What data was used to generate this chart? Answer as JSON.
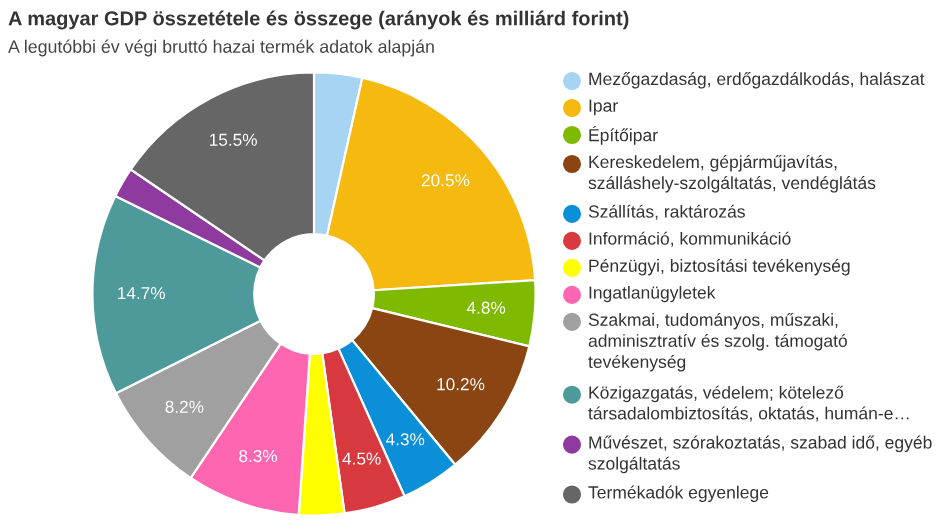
{
  "chart_data": {
    "type": "donut",
    "title": "A magyar GDP összetétele és összege (arányok és milliárd forint)",
    "subtitle": "A legutóbbi év végi bruttó hazai termék adatok alapján",
    "categories": [
      "Mezőgazdaság, erdőgazdálkodás, halászat",
      "Ipar",
      "Építőipar",
      "Kereskedelem, gépjárműjavítás, szálláshely-szolgáltatás, vendéglátás",
      "Szállítás, raktározás",
      "Információ, kommunikáció",
      "Pénzügyi, biztosítási tevékenység",
      "Ingatlanügyletek",
      "Szakmai, tudományos, műszaki, adminisztratív és szolg. támogató tevékenység",
      "Közigazgatás, védelem; kötelező társadalombiztosítás, oktatás, humán-e…",
      "Művészet, szórakoztatás, szabad idő, egyéb szolgáltatás",
      "Termékadók egyenlege"
    ],
    "values": [
      3.5,
      20.5,
      4.8,
      10.2,
      4.3,
      4.5,
      3.3,
      8.3,
      8.2,
      14.7,
      2.2,
      15.5
    ],
    "value_labels": [
      null,
      "20.5%",
      "4.8%",
      "10.2%",
      "4.3%",
      "4.5%",
      null,
      "8.3%",
      "8.2%",
      "14.7%",
      null,
      "15.5%"
    ],
    "colors": [
      "#a6d4f2",
      "#f5b90f",
      "#7fba00",
      "#8b4513",
      "#0a8fd8",
      "#d8393e",
      "#ffff00",
      "#ff66b2",
      "#a0a0a0",
      "#4e9a9a",
      "#8e3a9e",
      "#666666"
    ],
    "legend": "right"
  }
}
